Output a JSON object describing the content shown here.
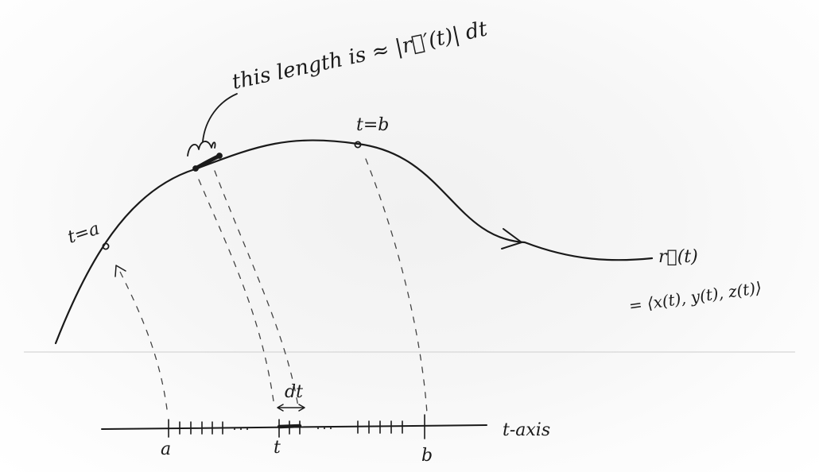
{
  "labels": {
    "length_note": "this length is ≈ |r⃗′(t)| dt",
    "t_equals_a": "t=a",
    "t_equals_b": "t=b",
    "r_of_t": "r⃗(t)",
    "components": "= ⟨x(t), y(t), z(t)⟩",
    "dt": "dt",
    "axis_a": "a",
    "axis_t": "t",
    "axis_b": "b",
    "t_axis": "t-axis"
  },
  "colors": {
    "ink": "#1a1a1a",
    "paper": "#f4f4f4"
  }
}
